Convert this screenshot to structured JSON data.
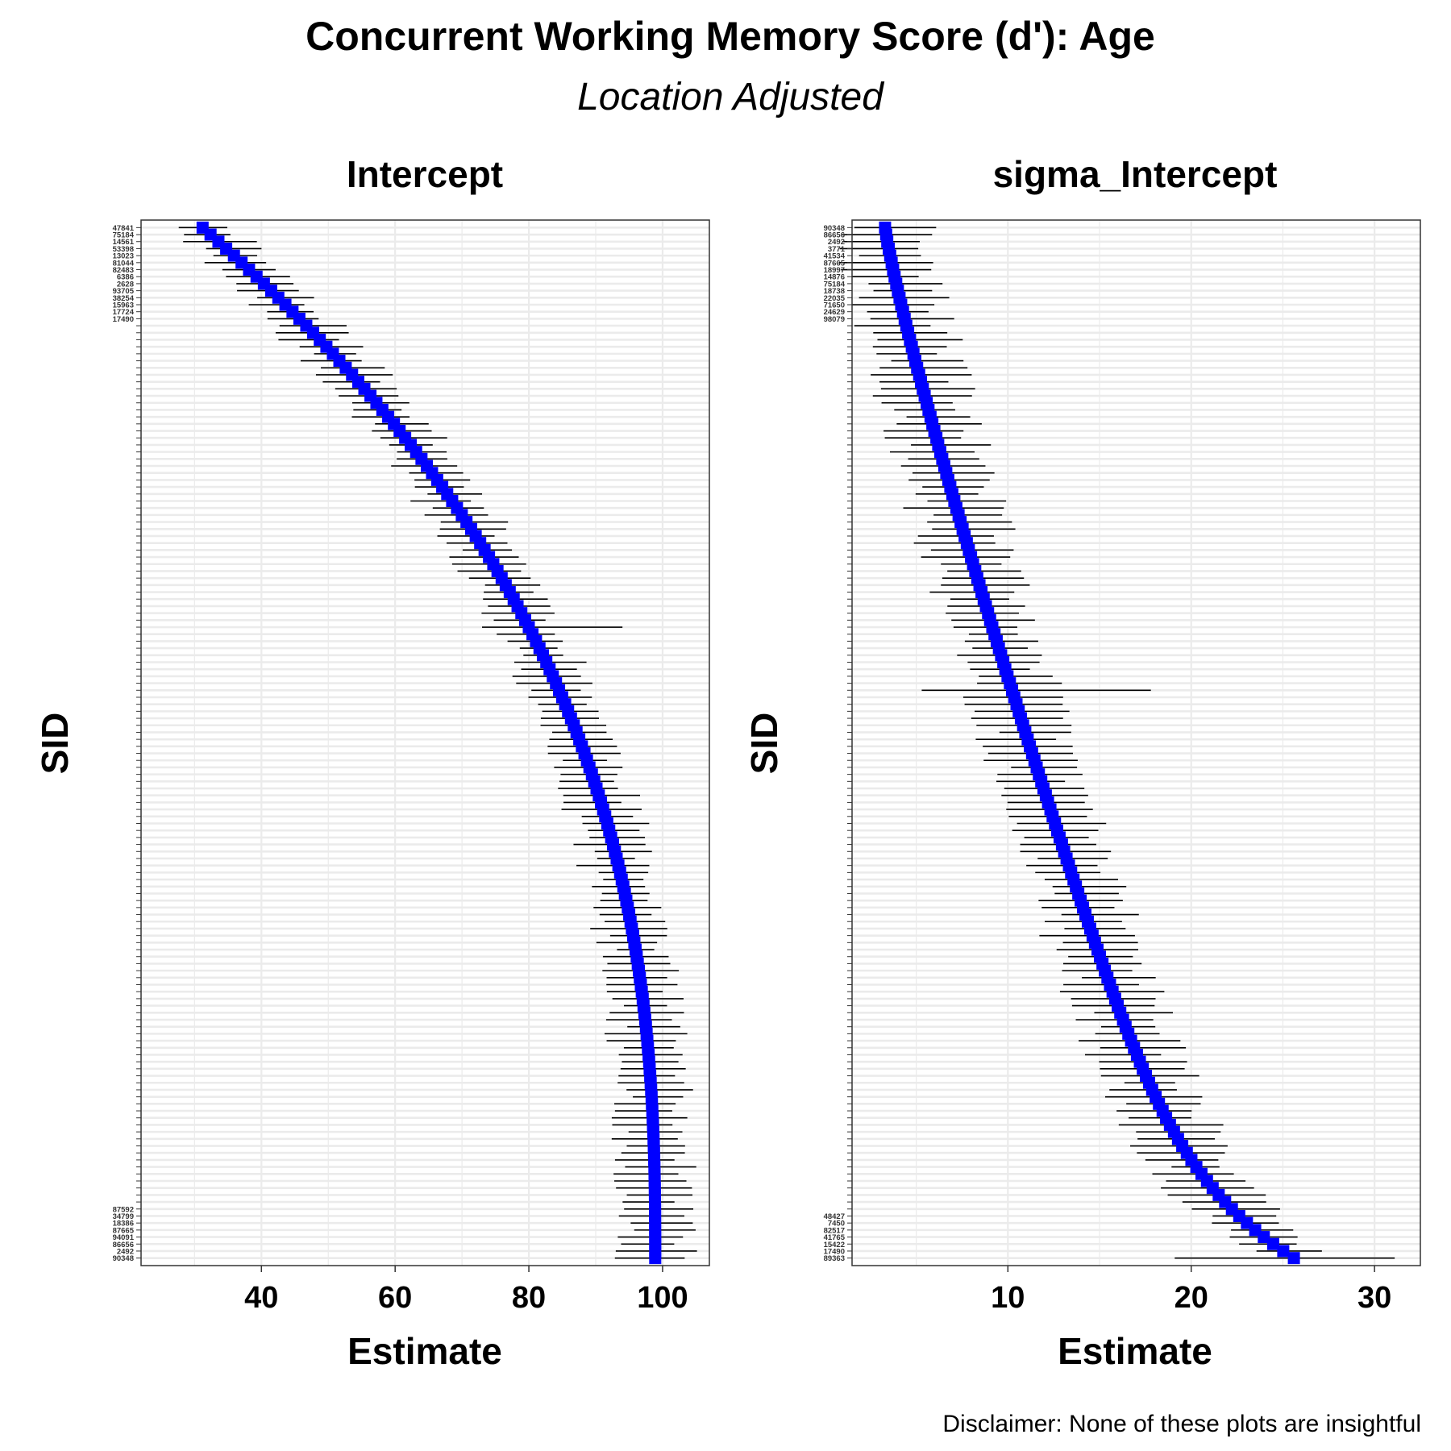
{
  "title": "Concurrent Working Memory Score (d'): Age",
  "subtitle": "Location Adjusted",
  "caption": "Disclaimer: None of these plots are insightful",
  "colors": {
    "point": "#0000ff",
    "errorbar": "#000000",
    "grid": "#ebebeb",
    "frame": "#333333"
  },
  "chart_data": [
    {
      "type": "scatter",
      "panel_title": "Intercept",
      "xlabel": "Estimate",
      "ylabel": "SID",
      "xlim": [
        22,
        107
      ],
      "xticks": [
        40,
        60,
        80,
        100
      ],
      "grid": true,
      "n_subjects": 148,
      "sorted_by": "estimate",
      "top_labels": [
        "47841",
        "75184",
        "14561",
        "53398",
        "13023",
        "81044",
        "82483",
        "6386",
        "2628",
        "93705",
        "38254",
        "15963",
        "17724",
        "17490"
      ],
      "bottom_labels": [
        "87592",
        "34799",
        "18386",
        "87665",
        "94091",
        "86656",
        "2492",
        "90348"
      ],
      "range": {
        "min": 31.2,
        "max": 98.9
      },
      "widest_interval": {
        "low": 73,
        "high": 94
      },
      "mean_interval_halfwidth": 4.5
    },
    {
      "type": "scatter",
      "panel_title": "sigma_Intercept",
      "xlabel": "Estimate",
      "ylabel": "SID",
      "xlim": [
        1.5,
        32.5
      ],
      "xticks": [
        10,
        20,
        30
      ],
      "grid": true,
      "n_subjects": 148,
      "sorted_by": "estimate",
      "top_labels": [
        "90348",
        "86656",
        "2492",
        "3771",
        "41534",
        "87665",
        "18997",
        "14876",
        "75184",
        "18738",
        "22035",
        "71650",
        "24629",
        "98079"
      ],
      "bottom_labels": [
        "48427",
        "7450",
        "82517",
        "41765",
        "15422",
        "17490",
        "89363"
      ],
      "range": {
        "min": 3.3,
        "max": 25.6
      },
      "widest_interval": {
        "low": 5.3,
        "high": 17.8
      },
      "mean_interval_halfwidth": 2.1
    }
  ]
}
